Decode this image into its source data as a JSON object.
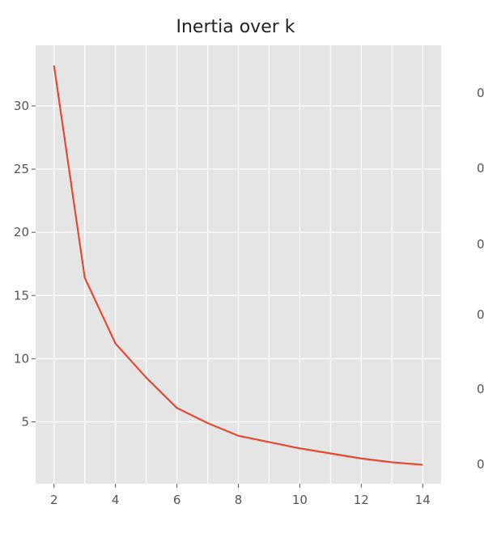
{
  "chart_data": {
    "type": "line",
    "title": "Inertia over k",
    "xlabel": "",
    "ylabel": "",
    "x": [
      2,
      3,
      4,
      5,
      6,
      7,
      8,
      9,
      10,
      11,
      12,
      13,
      14
    ],
    "series": [
      {
        "values": [
          33.2,
          16.4,
          11.2,
          8.5,
          6.1,
          4.9,
          3.9,
          3.4,
          2.9,
          2.5,
          2.1,
          1.8,
          1.6
        ]
      }
    ],
    "xticks": [
      2,
      4,
      6,
      8,
      10,
      12,
      14
    ],
    "yticks": [
      5,
      10,
      15,
      20,
      25,
      30
    ],
    "xlim": [
      1.4,
      14.6
    ],
    "ylim": [
      0.1,
      34.8
    ],
    "grid": true,
    "colors": {
      "line": "#E24A33",
      "background": "#E5E5E5",
      "grid": "#FFFFFF"
    }
  },
  "right_panel": {
    "tick_labels": [
      "0",
      "0",
      "0",
      "0",
      "0",
      "0"
    ]
  }
}
